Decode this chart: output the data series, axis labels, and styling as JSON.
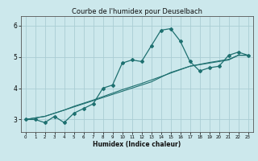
{
  "title": "Courbe de l'humidex pour Deuselbach",
  "xlabel": "Humidex (Indice chaleur)",
  "ylabel": "",
  "background_color": "#cce8ec",
  "grid_color": "#aacdd4",
  "line_color": "#1e7070",
  "x_values": [
    0,
    1,
    2,
    3,
    4,
    5,
    6,
    7,
    8,
    9,
    10,
    11,
    12,
    13,
    14,
    15,
    16,
    17,
    18,
    19,
    20,
    21,
    22,
    23
  ],
  "y_main": [
    3.0,
    3.0,
    2.9,
    3.1,
    2.9,
    3.2,
    3.35,
    3.5,
    4.0,
    4.1,
    4.8,
    4.9,
    4.85,
    5.35,
    5.85,
    5.9,
    5.5,
    4.85,
    4.55,
    4.65,
    4.7,
    5.05,
    5.15,
    5.05
  ],
  "y_line2": [
    3.0,
    3.05,
    3.1,
    3.2,
    3.3,
    3.4,
    3.5,
    3.6,
    3.7,
    3.8,
    3.9,
    4.0,
    4.1,
    4.2,
    4.35,
    4.5,
    4.6,
    4.7,
    4.75,
    4.8,
    4.85,
    4.9,
    5.05,
    5.05
  ],
  "y_line3": [
    3.0,
    3.05,
    3.1,
    3.2,
    3.3,
    3.42,
    3.52,
    3.62,
    3.73,
    3.84,
    3.95,
    4.05,
    4.15,
    4.26,
    4.37,
    4.48,
    4.59,
    4.7,
    4.76,
    4.82,
    4.87,
    4.92,
    5.05,
    5.05
  ],
  "xlim": [
    -0.5,
    23.5
  ],
  "ylim": [
    2.6,
    6.3
  ],
  "yticks": [
    3,
    4,
    5,
    6
  ],
  "xticks": [
    0,
    1,
    2,
    3,
    4,
    5,
    6,
    7,
    8,
    9,
    10,
    11,
    12,
    13,
    14,
    15,
    16,
    17,
    18,
    19,
    20,
    21,
    22,
    23
  ],
  "title_fontsize": 6.0,
  "xlabel_fontsize": 5.5,
  "ytick_fontsize": 5.5,
  "xtick_fontsize": 4.0
}
